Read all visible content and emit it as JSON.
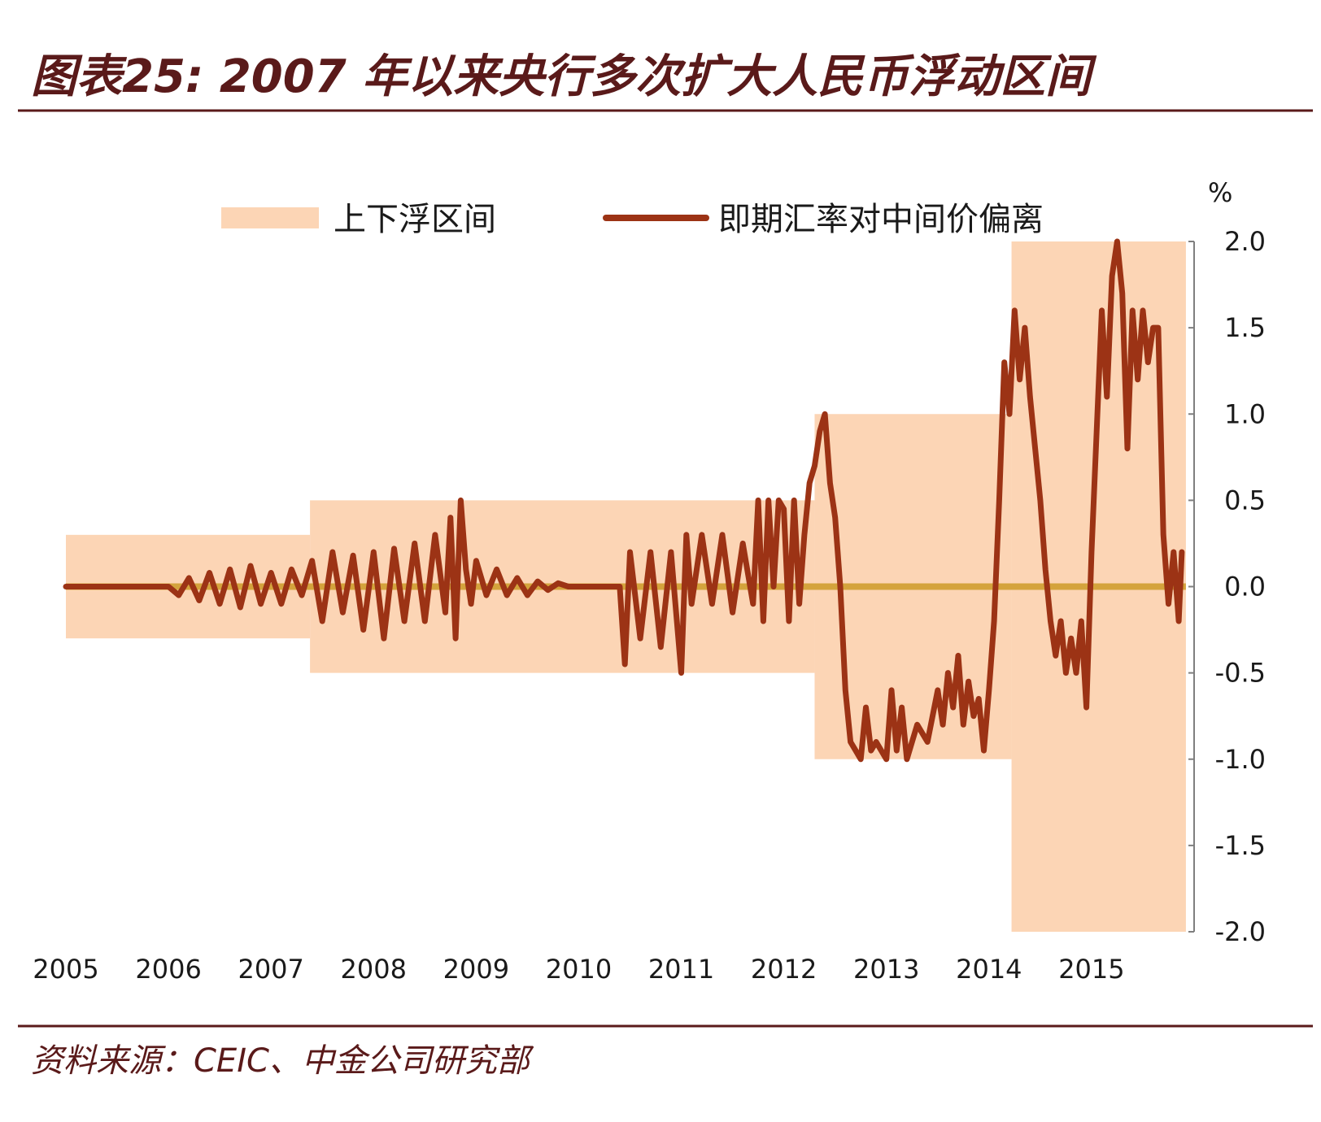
{
  "figure": {
    "title": "图表25: 2007 年以来央行多次扩大人民币浮动区间",
    "source": "资料来源：CEIC、中金公司研究部"
  },
  "colors": {
    "band": "#fcd5b5",
    "line": "#9c3315",
    "zero_line": "#d4a33c",
    "rule": "#5a1a1a",
    "text": "#1a1a1a"
  },
  "chart_data": {
    "type": "line",
    "title": "",
    "xlabel": "",
    "ylabel": "%",
    "ylim": [
      -2.0,
      2.0
    ],
    "xlim": [
      2005,
      2016
    ],
    "y_ticks": [
      "2.0",
      "1.5",
      "1.0",
      "0.5",
      "0.0",
      "-0.5",
      "-1.0",
      "-1.5",
      "-2.0"
    ],
    "x_ticks": [
      "2005",
      "2006",
      "2007",
      "2008",
      "2009",
      "2010",
      "2011",
      "2012",
      "2013",
      "2014",
      "2015"
    ],
    "y_axis_position": "right",
    "legend_position": "top",
    "grid": false,
    "series": [
      {
        "name": "上下浮区间",
        "kind": "band",
        "segments": [
          {
            "from": 2005.0,
            "to": 2007.38,
            "lower": -0.3,
            "upper": 0.3
          },
          {
            "from": 2007.38,
            "to": 2012.3,
            "lower": -0.5,
            "upper": 0.5
          },
          {
            "from": 2012.3,
            "to": 2014.22,
            "lower": -1.0,
            "upper": 1.0
          },
          {
            "from": 2014.22,
            "to": 2015.92,
            "lower": -2.0,
            "upper": 2.0
          }
        ]
      },
      {
        "name": "即期汇率对中间价偏离",
        "kind": "line",
        "x": [
          2005.0,
          2005.5,
          2005.9,
          2006.0,
          2006.1,
          2006.2,
          2006.3,
          2006.4,
          2006.5,
          2006.6,
          2006.7,
          2006.8,
          2006.9,
          2007.0,
          2007.1,
          2007.2,
          2007.3,
          2007.4,
          2007.5,
          2007.6,
          2007.7,
          2007.8,
          2007.9,
          2008.0,
          2008.1,
          2008.2,
          2008.3,
          2008.4,
          2008.5,
          2008.6,
          2008.7,
          2008.75,
          2008.8,
          2008.85,
          2008.9,
          2008.95,
          2009.0,
          2009.1,
          2009.2,
          2009.3,
          2009.4,
          2009.5,
          2009.6,
          2009.7,
          2009.8,
          2009.9,
          2010.0,
          2010.2,
          2010.4,
          2010.45,
          2010.5,
          2010.6,
          2010.7,
          2010.8,
          2010.9,
          2011.0,
          2011.05,
          2011.1,
          2011.2,
          2011.3,
          2011.4,
          2011.5,
          2011.6,
          2011.7,
          2011.75,
          2011.8,
          2011.85,
          2011.9,
          2011.95,
          2012.0,
          2012.05,
          2012.1,
          2012.15,
          2012.2,
          2012.25,
          2012.3,
          2012.35,
          2012.4,
          2012.45,
          2012.5,
          2012.55,
          2012.6,
          2012.65,
          2012.7,
          2012.75,
          2012.8,
          2012.85,
          2012.9,
          2013.0,
          2013.05,
          2013.1,
          2013.15,
          2013.2,
          2013.3,
          2013.4,
          2013.5,
          2013.55,
          2013.6,
          2013.65,
          2013.7,
          2013.75,
          2013.8,
          2013.85,
          2013.9,
          2013.95,
          2014.0,
          2014.05,
          2014.1,
          2014.15,
          2014.2,
          2014.25,
          2014.3,
          2014.35,
          2014.4,
          2014.45,
          2014.5,
          2014.55,
          2014.6,
          2014.65,
          2014.7,
          2014.75,
          2014.8,
          2014.85,
          2014.9,
          2014.95,
          2015.0,
          2015.05,
          2015.1,
          2015.15,
          2015.2,
          2015.25,
          2015.3,
          2015.35,
          2015.4,
          2015.45,
          2015.5,
          2015.55,
          2015.6,
          2015.65,
          2015.7,
          2015.75,
          2015.8,
          2015.85,
          2015.88
        ],
        "values": [
          0.0,
          0.0,
          0.0,
          0.0,
          -0.05,
          0.05,
          -0.08,
          0.08,
          -0.1,
          0.1,
          -0.12,
          0.12,
          -0.1,
          0.08,
          -0.1,
          0.1,
          -0.05,
          0.15,
          -0.2,
          0.2,
          -0.15,
          0.18,
          -0.25,
          0.2,
          -0.3,
          0.22,
          -0.2,
          0.25,
          -0.2,
          0.3,
          -0.15,
          0.4,
          -0.3,
          0.5,
          0.1,
          -0.1,
          0.15,
          -0.05,
          0.1,
          -0.05,
          0.05,
          -0.05,
          0.03,
          -0.02,
          0.02,
          0.0,
          0.0,
          0.0,
          0.0,
          -0.45,
          0.2,
          -0.3,
          0.2,
          -0.35,
          0.2,
          -0.5,
          0.3,
          -0.1,
          0.3,
          -0.1,
          0.3,
          -0.15,
          0.25,
          -0.1,
          0.5,
          -0.2,
          0.5,
          0.0,
          0.5,
          0.45,
          -0.2,
          0.5,
          -0.1,
          0.3,
          0.6,
          0.7,
          0.9,
          1.0,
          0.6,
          0.4,
          0.0,
          -0.6,
          -0.9,
          -0.95,
          -1.0,
          -0.7,
          -0.95,
          -0.9,
          -1.0,
          -0.6,
          -0.95,
          -0.7,
          -1.0,
          -0.8,
          -0.9,
          -0.6,
          -0.8,
          -0.5,
          -0.7,
          -0.4,
          -0.8,
          -0.55,
          -0.75,
          -0.65,
          -0.95,
          -0.6,
          -0.2,
          0.5,
          1.3,
          1.0,
          1.6,
          1.2,
          1.5,
          1.1,
          0.8,
          0.5,
          0.1,
          -0.2,
          -0.4,
          -0.2,
          -0.5,
          -0.3,
          -0.5,
          -0.2,
          -0.7,
          0.2,
          0.9,
          1.6,
          1.1,
          1.8,
          2.0,
          1.7,
          0.8,
          1.6,
          1.2,
          1.6,
          1.3,
          1.5,
          1.5,
          0.3,
          -0.1,
          0.2,
          -0.2,
          0.2
        ]
      }
    ]
  }
}
